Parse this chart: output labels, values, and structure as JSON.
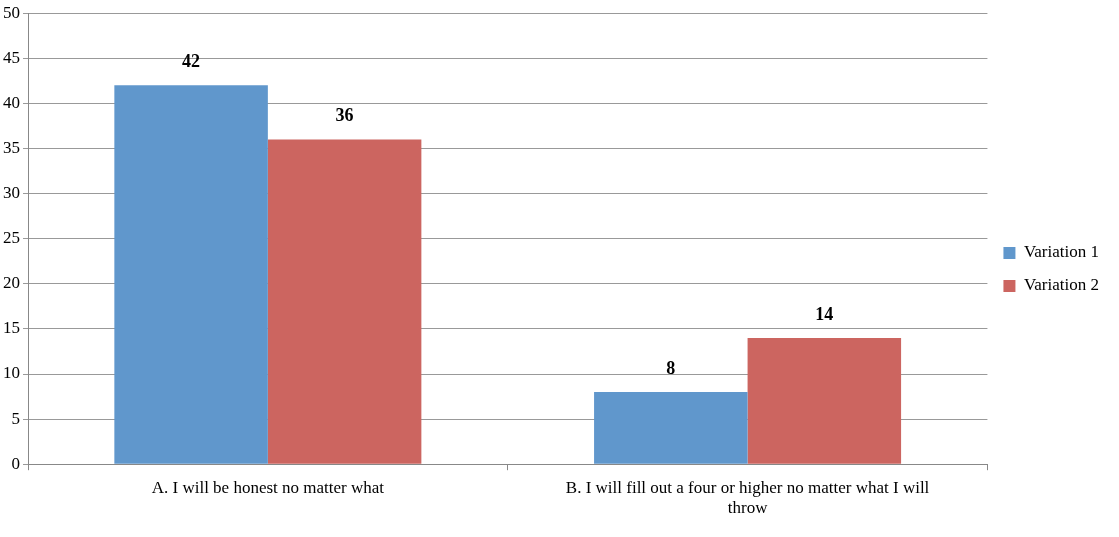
{
  "chart_data": {
    "type": "bar",
    "categories": [
      "A. I will be honest no matter what",
      "B. I will fill out a four or higher no matter what I will throw"
    ],
    "series": [
      {
        "name": "Variation 1",
        "color": "#6097cc",
        "values": [
          42,
          8
        ]
      },
      {
        "name": "Variation 2",
        "color": "#cc6560",
        "values": [
          36,
          14
        ]
      }
    ],
    "ylim": [
      0,
      50
    ],
    "yticks": [
      0,
      5,
      10,
      15,
      20,
      25,
      30,
      35,
      40,
      45,
      50
    ],
    "grid": "y",
    "legend": "right",
    "data_labels": true
  }
}
